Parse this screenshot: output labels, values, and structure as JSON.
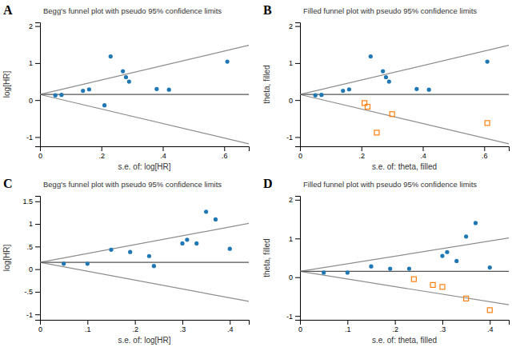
{
  "chart_data": [
    {
      "type": "scatter",
      "title": "Begg's funnel plot with pseudo 95% confidence limits",
      "x_label": "s.e. of: log[HR]",
      "y_label": "log[HR]",
      "annotations": [
        "A"
      ],
      "xlim": [
        0,
        0.68
      ],
      "ylim": [
        -1.25,
        2.1
      ],
      "xticks": [
        0,
        {
          "value": 0.2,
          "label": ".2"
        },
        {
          "value": 0.4,
          "label": ".4"
        },
        {
          "value": 0.6,
          "label": ".6"
        }
      ],
      "yticks": [
        -1,
        0,
        1,
        2
      ],
      "series": [
        {
          "type": "scatter",
          "marker": "circle",
          "x": [
            0.05,
            0.07,
            0.14,
            0.16,
            0.21,
            0.23,
            0.27,
            0.28,
            0.29,
            0.38,
            0.42,
            0.61
          ],
          "values": [
            0.13,
            0.14,
            0.25,
            0.29,
            -0.14,
            1.18,
            0.78,
            0.62,
            0.5,
            0.3,
            0.28,
            1.04
          ]
        },
        {
          "type": "line",
          "x": [
            0,
            0.68
          ],
          "values": [
            0.15,
            1.4828
          ]
        },
        {
          "type": "line",
          "x": [
            0,
            0.68
          ],
          "values": [
            0.15,
            -1.1828
          ]
        },
        {
          "type": "line",
          "x": [
            0,
            0.68
          ],
          "values": [
            0.15,
            0.15
          ]
        }
      ]
    },
    {
      "type": "scatter",
      "title": "Filled funnel plot with pseudo 95% confidence limits",
      "x_label": "s.e. of: theta, filled",
      "y_label": "theta, filled",
      "annotations": [
        "B"
      ],
      "xlim": [
        0,
        0.68
      ],
      "ylim": [
        -1.25,
        2.1
      ],
      "xticks": [
        0,
        {
          "value": 0.2,
          "label": ".2"
        },
        {
          "value": 0.4,
          "label": ".4"
        },
        {
          "value": 0.6,
          "label": ".6"
        }
      ],
      "yticks": [
        -1,
        0,
        1,
        2
      ],
      "series": [
        {
          "type": "scatter",
          "marker": "circle",
          "x": [
            0.05,
            0.07,
            0.14,
            0.16,
            0.23,
            0.27,
            0.28,
            0.29,
            0.38,
            0.42,
            0.61
          ],
          "values": [
            0.13,
            0.14,
            0.25,
            0.29,
            1.18,
            0.78,
            0.62,
            0.5,
            0.3,
            0.28,
            1.04
          ]
        },
        {
          "type": "scatter",
          "marker": "square",
          "x": [
            0.21,
            0.22,
            0.3,
            0.25,
            0.61
          ],
          "values": [
            -0.08,
            -0.18,
            -0.38,
            -0.88,
            -0.62
          ]
        },
        {
          "type": "line",
          "x": [
            0,
            0.68
          ],
          "values": [
            0.15,
            1.4828
          ]
        },
        {
          "type": "line",
          "x": [
            0,
            0.68
          ],
          "values": [
            0.15,
            -1.1828
          ]
        },
        {
          "type": "line",
          "x": [
            0,
            0.68
          ],
          "values": [
            0.15,
            0.15
          ]
        }
      ]
    },
    {
      "type": "scatter",
      "title": "Begg's funnel plot with pseudo 95% confidence limits",
      "x_label": "s.e. of: log[HR]",
      "y_label": "log[HR]",
      "annotations": [
        "C"
      ],
      "xlim": [
        0,
        0.44
      ],
      "ylim": [
        -1.12,
        1.62
      ],
      "xticks": [
        0,
        {
          "value": 0.1,
          "label": ".1"
        },
        {
          "value": 0.2,
          "label": ".2"
        },
        {
          "value": 0.3,
          "label": ".3"
        },
        {
          "value": 0.4,
          "label": ".4"
        }
      ],
      "yticks": [
        -1,
        {
          "value": -0.5,
          "label": "-.5"
        },
        0,
        {
          "value": 0.5,
          "label": ".5"
        },
        1,
        1.5
      ],
      "series": [
        {
          "type": "scatter",
          "marker": "circle",
          "x": [
            0.05,
            0.1,
            0.15,
            0.19,
            0.23,
            0.24,
            0.3,
            0.31,
            0.33,
            0.35,
            0.37,
            0.4
          ],
          "values": [
            0.12,
            0.12,
            0.43,
            0.38,
            0.29,
            0.07,
            0.57,
            0.65,
            0.57,
            1.27,
            1.1,
            0.45
          ]
        },
        {
          "type": "line",
          "x": [
            0,
            0.44
          ],
          "values": [
            0.15,
            1.0124
          ]
        },
        {
          "type": "line",
          "x": [
            0,
            0.44
          ],
          "values": [
            0.15,
            -0.7124
          ]
        },
        {
          "type": "line",
          "x": [
            0,
            0.44
          ],
          "values": [
            0.15,
            0.15
          ]
        }
      ]
    },
    {
      "type": "scatter",
      "title": "Filled funnel plot with pseudo 95% confidence limits",
      "x_label": "s.e. of: theta, filled",
      "y_label": "theta, filled",
      "annotations": [
        "D"
      ],
      "xlim": [
        0,
        0.44
      ],
      "ylim": [
        -1.1,
        2.1
      ],
      "xticks": [
        0,
        {
          "value": 0.1,
          "label": ".1"
        },
        {
          "value": 0.2,
          "label": ".2"
        },
        {
          "value": 0.3,
          "label": ".3"
        },
        {
          "value": 0.4,
          "label": ".4"
        }
      ],
      "yticks": [
        -1,
        0,
        1,
        2
      ],
      "series": [
        {
          "type": "scatter",
          "marker": "circle",
          "x": [
            0.05,
            0.1,
            0.15,
            0.19,
            0.23,
            0.3,
            0.31,
            0.33,
            0.35,
            0.37,
            0.4
          ],
          "values": [
            0.12,
            0.12,
            0.28,
            0.22,
            0.22,
            0.55,
            0.65,
            0.42,
            1.05,
            1.4,
            0.25
          ]
        },
        {
          "type": "scatter",
          "marker": "square",
          "x": [
            0.24,
            0.28,
            0.3,
            0.35,
            0.4
          ],
          "values": [
            -0.05,
            -0.2,
            -0.25,
            -0.55,
            -0.85
          ]
        },
        {
          "type": "line",
          "x": [
            0,
            0.44
          ],
          "values": [
            0.15,
            1.0124
          ]
        },
        {
          "type": "line",
          "x": [
            0,
            0.44
          ],
          "values": [
            0.15,
            -0.7124
          ]
        },
        {
          "type": "line",
          "x": [
            0,
            0.44
          ],
          "values": [
            0.15,
            0.15
          ]
        }
      ]
    }
  ]
}
